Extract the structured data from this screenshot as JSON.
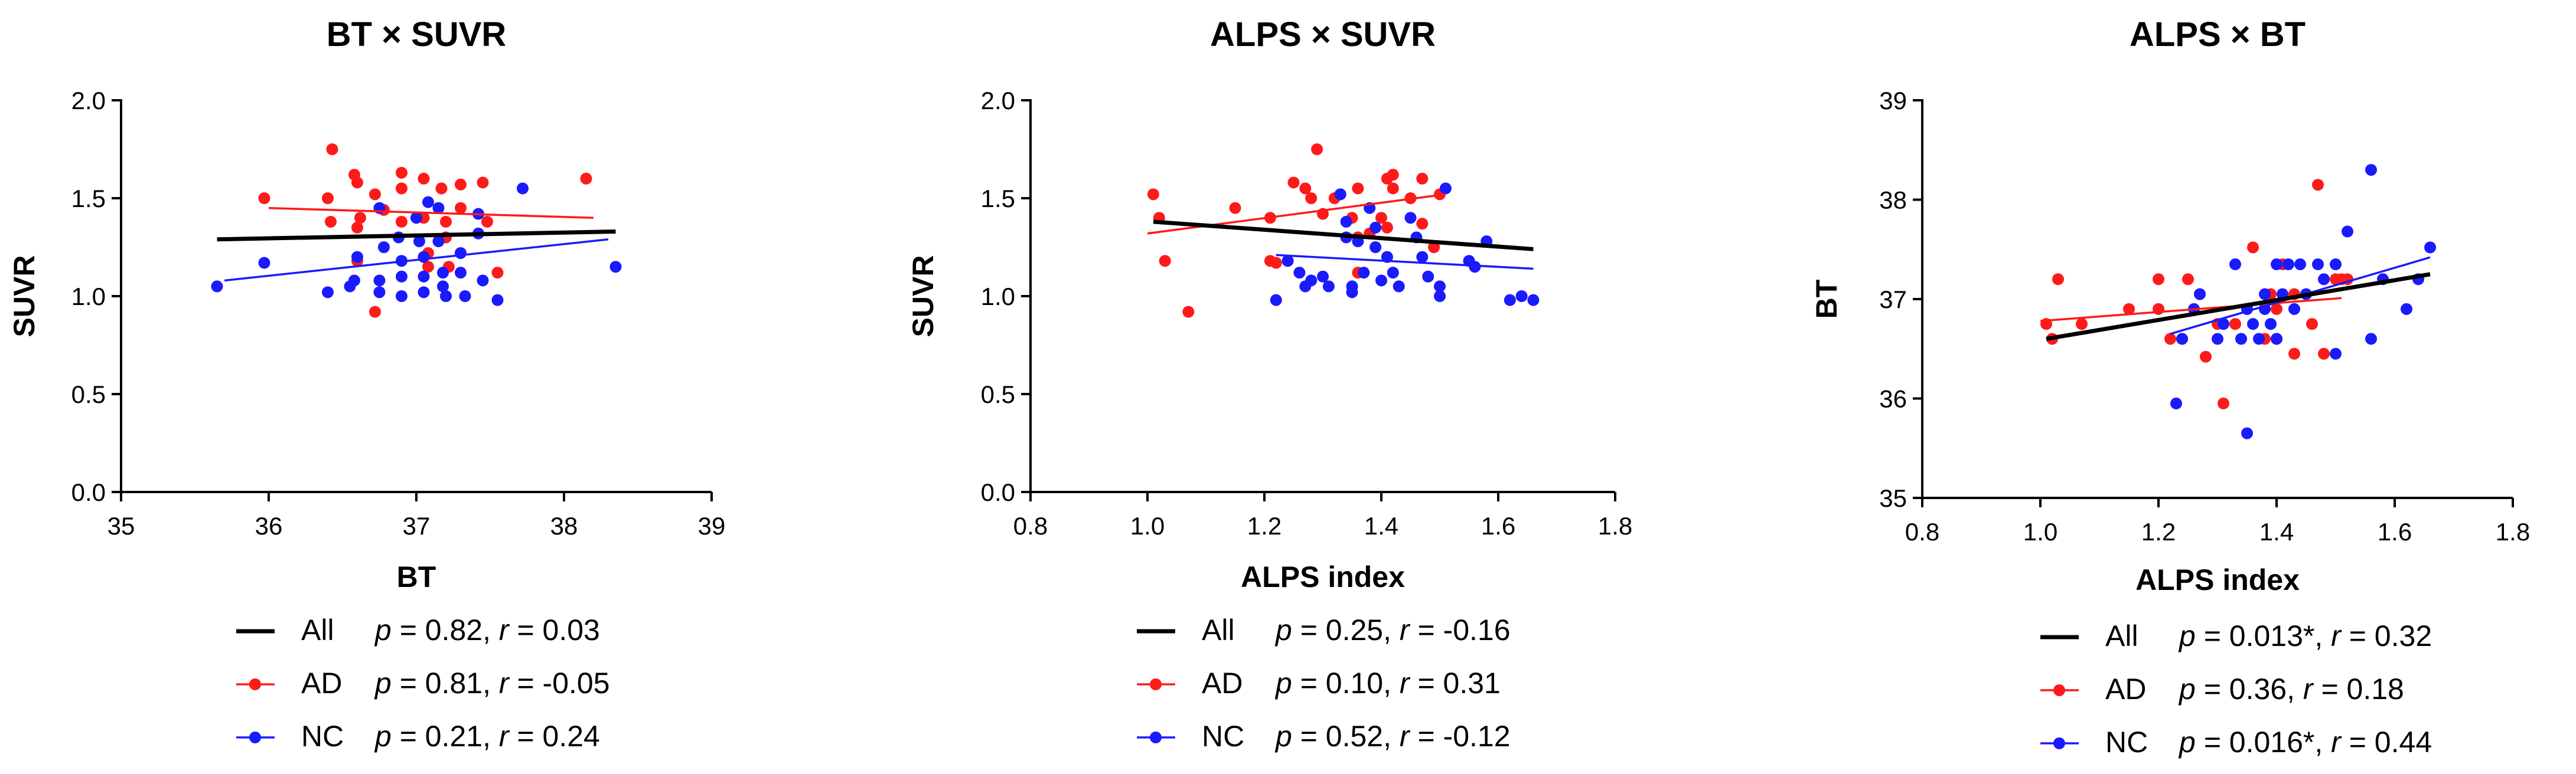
{
  "colors": {
    "all": "#000000",
    "ad": "#ff1a1a",
    "nc": "#1a1aff"
  },
  "chart_data": [
    {
      "type": "scatter",
      "title": "BT × SUVR",
      "xlabel": "BT",
      "ylabel": "SUVR",
      "xlim": [
        35,
        39
      ],
      "ylim": [
        0,
        2
      ],
      "xticks": [
        35,
        36,
        37,
        38,
        39
      ],
      "yticks": [
        0,
        0.5,
        1,
        1.5,
        2
      ],
      "xtick_labels": [
        "35",
        "36",
        "37",
        "38",
        "39"
      ],
      "ytick_labels": [
        "0.0",
        "0.5",
        "1.0",
        "1.5",
        "2.0"
      ],
      "series": [
        {
          "name": "AD",
          "color": "#ff1a1a",
          "points": [
            [
              35.97,
              1.5
            ],
            [
              36.43,
              1.75
            ],
            [
              36.4,
              1.5
            ],
            [
              36.42,
              1.38
            ],
            [
              36.58,
              1.62
            ],
            [
              36.6,
              1.58
            ],
            [
              36.62,
              1.4
            ],
            [
              36.6,
              1.35
            ],
            [
              36.6,
              1.18
            ],
            [
              36.72,
              1.52
            ],
            [
              36.78,
              1.44
            ],
            [
              36.9,
              1.63
            ],
            [
              36.9,
              1.55
            ],
            [
              36.9,
              1.38
            ],
            [
              37.05,
              1.6
            ],
            [
              37.05,
              1.4
            ],
            [
              37.08,
              1.22
            ],
            [
              37.08,
              1.15
            ],
            [
              37.17,
              1.55
            ],
            [
              37.2,
              1.38
            ],
            [
              37.2,
              1.3
            ],
            [
              37.22,
              1.15
            ],
            [
              37.3,
              1.57
            ],
            [
              37.3,
              1.45
            ],
            [
              37.3,
              1.22
            ],
            [
              37.45,
              1.58
            ],
            [
              37.48,
              1.38
            ],
            [
              37.55,
              1.12
            ],
            [
              38.15,
              1.6
            ],
            [
              36.72,
              0.92
            ]
          ],
          "fit": {
            "x": [
              36.0,
              38.2
            ],
            "y": [
              1.45,
              1.4
            ]
          }
        },
        {
          "name": "NC",
          "color": "#1a1aff",
          "points": [
            [
              35.65,
              1.05
            ],
            [
              35.97,
              1.17
            ],
            [
              36.4,
              1.02
            ],
            [
              36.55,
              1.05
            ],
            [
              36.58,
              1.08
            ],
            [
              36.6,
              1.2
            ],
            [
              36.75,
              1.45
            ],
            [
              36.75,
              1.08
            ],
            [
              36.78,
              1.25
            ],
            [
              36.75,
              1.02
            ],
            [
              36.88,
              1.3
            ],
            [
              36.9,
              1.18
            ],
            [
              36.9,
              1.1
            ],
            [
              36.9,
              1.0
            ],
            [
              37.0,
              1.4
            ],
            [
              37.02,
              1.28
            ],
            [
              37.05,
              1.2
            ],
            [
              37.05,
              1.1
            ],
            [
              37.05,
              1.02
            ],
            [
              37.15,
              1.45
            ],
            [
              37.15,
              1.28
            ],
            [
              37.18,
              1.12
            ],
            [
              37.18,
              1.05
            ],
            [
              37.2,
              1.0
            ],
            [
              37.3,
              1.22
            ],
            [
              37.3,
              1.12
            ],
            [
              37.33,
              1.0
            ],
            [
              37.42,
              1.42
            ],
            [
              37.42,
              1.32
            ],
            [
              37.45,
              1.08
            ],
            [
              37.55,
              0.98
            ],
            [
              37.72,
              1.55
            ],
            [
              38.35,
              1.15
            ],
            [
              37.08,
              1.48
            ]
          ],
          "fit": {
            "x": [
              35.7,
              38.3
            ],
            "y": [
              1.08,
              1.29
            ]
          }
        },
        {
          "name": "All",
          "color": "#000000",
          "points": [],
          "fit": {
            "x": [
              35.65,
              38.35
            ],
            "y": [
              1.29,
              1.33
            ]
          }
        }
      ],
      "legend": [
        {
          "name": "All",
          "stats": {
            "p": "p",
            "p_val": " = 0.82, ",
            "r": "r",
            "r_val": " = 0.03"
          }
        },
        {
          "name": "AD",
          "stats": {
            "p": "p",
            "p_val": " = 0.81, ",
            "r": "r",
            "r_val": " = -0.05"
          }
        },
        {
          "name": "NC",
          "stats": {
            "p": "p",
            "p_val": " = 0.21, ",
            "r": "r",
            "r_val": " = 0.24"
          }
        }
      ]
    },
    {
      "type": "scatter",
      "title": "ALPS × SUVR",
      "xlabel": "ALPS index",
      "ylabel": "SUVR",
      "xlim": [
        0.8,
        1.8
      ],
      "ylim": [
        0,
        2
      ],
      "xticks": [
        0.8,
        1.0,
        1.2,
        1.4,
        1.6,
        1.8
      ],
      "yticks": [
        0,
        0.5,
        1,
        1.5,
        2
      ],
      "xtick_labels": [
        "0.8",
        "1.0",
        "1.2",
        "1.4",
        "1.6",
        "1.8"
      ],
      "ytick_labels": [
        "0.0",
        "0.5",
        "1.0",
        "1.5",
        "2.0"
      ],
      "series": [
        {
          "name": "AD",
          "color": "#ff1a1a",
          "points": [
            [
              1.01,
              1.52
            ],
            [
              1.02,
              1.4
            ],
            [
              1.03,
              1.18
            ],
            [
              1.07,
              0.92
            ],
            [
              1.15,
              1.45
            ],
            [
              1.21,
              1.4
            ],
            [
              1.21,
              1.18
            ],
            [
              1.22,
              1.17
            ],
            [
              1.25,
              1.58
            ],
            [
              1.27,
              1.55
            ],
            [
              1.28,
              1.5
            ],
            [
              1.29,
              1.75
            ],
            [
              1.3,
              1.42
            ],
            [
              1.32,
              1.5
            ],
            [
              1.33,
              1.52
            ],
            [
              1.35,
              1.4
            ],
            [
              1.36,
              1.55
            ],
            [
              1.36,
              1.3
            ],
            [
              1.38,
              1.32
            ],
            [
              1.4,
              1.4
            ],
            [
              1.41,
              1.6
            ],
            [
              1.41,
              1.35
            ],
            [
              1.42,
              1.62
            ],
            [
              1.42,
              1.55
            ],
            [
              1.45,
              1.5
            ],
            [
              1.47,
              1.6
            ],
            [
              1.47,
              1.37
            ],
            [
              1.49,
              1.25
            ],
            [
              1.5,
              1.52
            ],
            [
              1.36,
              1.12
            ]
          ],
          "fit": {
            "x": [
              1.0,
              1.51
            ],
            "y": [
              1.32,
              1.52
            ]
          }
        },
        {
          "name": "NC",
          "color": "#1a1aff",
          "points": [
            [
              1.22,
              0.98
            ],
            [
              1.24,
              1.18
            ],
            [
              1.26,
              1.12
            ],
            [
              1.27,
              1.05
            ],
            [
              1.28,
              1.08
            ],
            [
              1.3,
              1.1
            ],
            [
              1.31,
              1.05
            ],
            [
              1.33,
              1.52
            ],
            [
              1.34,
              1.38
            ],
            [
              1.34,
              1.3
            ],
            [
              1.35,
              1.05
            ],
            [
              1.35,
              1.02
            ],
            [
              1.36,
              1.28
            ],
            [
              1.37,
              1.12
            ],
            [
              1.38,
              1.45
            ],
            [
              1.39,
              1.35
            ],
            [
              1.39,
              1.25
            ],
            [
              1.4,
              1.08
            ],
            [
              1.41,
              1.2
            ],
            [
              1.42,
              1.12
            ],
            [
              1.43,
              1.05
            ],
            [
              1.45,
              1.4
            ],
            [
              1.46,
              1.3
            ],
            [
              1.47,
              1.2
            ],
            [
              1.48,
              1.1
            ],
            [
              1.5,
              1.05
            ],
            [
              1.5,
              1.0
            ],
            [
              1.51,
              1.55
            ],
            [
              1.55,
              1.18
            ],
            [
              1.56,
              1.15
            ],
            [
              1.58,
              1.28
            ],
            [
              1.62,
              0.98
            ],
            [
              1.64,
              1.0
            ],
            [
              1.66,
              0.98
            ]
          ],
          "fit": {
            "x": [
              1.22,
              1.66
            ],
            "y": [
              1.21,
              1.14
            ]
          }
        },
        {
          "name": "All",
          "color": "#000000",
          "points": [],
          "fit": {
            "x": [
              1.01,
              1.66
            ],
            "y": [
              1.38,
              1.24
            ]
          }
        }
      ],
      "legend": [
        {
          "name": "All",
          "stats": {
            "p": "p",
            "p_val": " = 0.25, ",
            "r": "r",
            "r_val": " = -0.16"
          }
        },
        {
          "name": "AD",
          "stats": {
            "p": "p",
            "p_val": " = 0.10, ",
            "r": "r",
            "r_val": " = 0.31"
          }
        },
        {
          "name": "NC",
          "stats": {
            "p": "p",
            "p_val": " = 0.52, ",
            "r": "r",
            "r_val": " = -0.12"
          }
        }
      ]
    },
    {
      "type": "scatter",
      "title": "ALPS × BT",
      "xlabel": "ALPS index",
      "ylabel": "BT",
      "xlim": [
        0.8,
        1.8
      ],
      "ylim": [
        35,
        39
      ],
      "xticks": [
        0.8,
        1.0,
        1.2,
        1.4,
        1.6,
        1.8
      ],
      "yticks": [
        35,
        36,
        37,
        38,
        39
      ],
      "xtick_labels": [
        "0.8",
        "1.0",
        "1.2",
        "1.4",
        "1.6",
        "1.8"
      ],
      "ytick_labels": [
        "35",
        "36",
        "37",
        "38",
        "39"
      ],
      "series": [
        {
          "name": "AD",
          "color": "#ff1a1a",
          "points": [
            [
              1.01,
              36.75
            ],
            [
              1.02,
              36.6
            ],
            [
              1.03,
              37.2
            ],
            [
              1.07,
              36.75
            ],
            [
              1.15,
              36.9
            ],
            [
              1.2,
              37.2
            ],
            [
              1.2,
              36.9
            ],
            [
              1.22,
              36.6
            ],
            [
              1.24,
              36.6
            ],
            [
              1.25,
              37.2
            ],
            [
              1.27,
              37.05
            ],
            [
              1.28,
              36.42
            ],
            [
              1.3,
              36.75
            ],
            [
              1.31,
              35.95
            ],
            [
              1.33,
              36.75
            ],
            [
              1.35,
              36.9
            ],
            [
              1.36,
              37.52
            ],
            [
              1.38,
              36.6
            ],
            [
              1.39,
              37.05
            ],
            [
              1.4,
              36.9
            ],
            [
              1.4,
              36.6
            ],
            [
              1.41,
              37.35
            ],
            [
              1.43,
              37.05
            ],
            [
              1.43,
              36.45
            ],
            [
              1.46,
              36.75
            ],
            [
              1.47,
              38.15
            ],
            [
              1.48,
              36.45
            ],
            [
              1.5,
              37.2
            ],
            [
              1.51,
              37.2
            ],
            [
              1.52,
              37.2
            ]
          ],
          "fit": {
            "x": [
              1.0,
              1.51
            ],
            "y": [
              36.78,
              37.01
            ]
          }
        },
        {
          "name": "NC",
          "color": "#1a1aff",
          "points": [
            [
              1.23,
              35.95
            ],
            [
              1.24,
              36.6
            ],
            [
              1.26,
              36.9
            ],
            [
              1.27,
              37.05
            ],
            [
              1.3,
              36.6
            ],
            [
              1.31,
              36.75
            ],
            [
              1.33,
              37.35
            ],
            [
              1.34,
              36.6
            ],
            [
              1.35,
              35.65
            ],
            [
              1.35,
              36.9
            ],
            [
              1.36,
              36.75
            ],
            [
              1.37,
              36.6
            ],
            [
              1.38,
              37.05
            ],
            [
              1.38,
              36.9
            ],
            [
              1.39,
              36.75
            ],
            [
              1.4,
              36.6
            ],
            [
              1.4,
              37.35
            ],
            [
              1.41,
              37.05
            ],
            [
              1.42,
              37.35
            ],
            [
              1.43,
              36.9
            ],
            [
              1.44,
              37.35
            ],
            [
              1.45,
              37.05
            ],
            [
              1.47,
              37.35
            ],
            [
              1.48,
              37.2
            ],
            [
              1.5,
              37.35
            ],
            [
              1.5,
              36.45
            ],
            [
              1.52,
              37.68
            ],
            [
              1.56,
              38.3
            ],
            [
              1.56,
              36.6
            ],
            [
              1.58,
              37.2
            ],
            [
              1.62,
              36.9
            ],
            [
              1.64,
              37.2
            ],
            [
              1.66,
              37.52
            ]
          ],
          "fit": {
            "x": [
              1.22,
              1.66
            ],
            "y": [
              36.65,
              37.42
            ]
          }
        },
        {
          "name": "All",
          "color": "#000000",
          "points": [],
          "fit": {
            "x": [
              1.01,
              1.66
            ],
            "y": [
              36.6,
              37.25
            ]
          }
        }
      ],
      "legend": [
        {
          "name": "All",
          "stats": {
            "p": "p",
            "p_val": " = 0.013*, ",
            "r": "r",
            "r_val": " = 0.32"
          }
        },
        {
          "name": "AD",
          "stats": {
            "p": "p",
            "p_val": " = 0.36, ",
            "r": "r",
            "r_val": " = 0.18"
          }
        },
        {
          "name": "NC",
          "stats": {
            "p": "p",
            "p_val": " = 0.016*, ",
            "r": "r",
            "r_val": " = 0.44"
          }
        }
      ]
    }
  ]
}
